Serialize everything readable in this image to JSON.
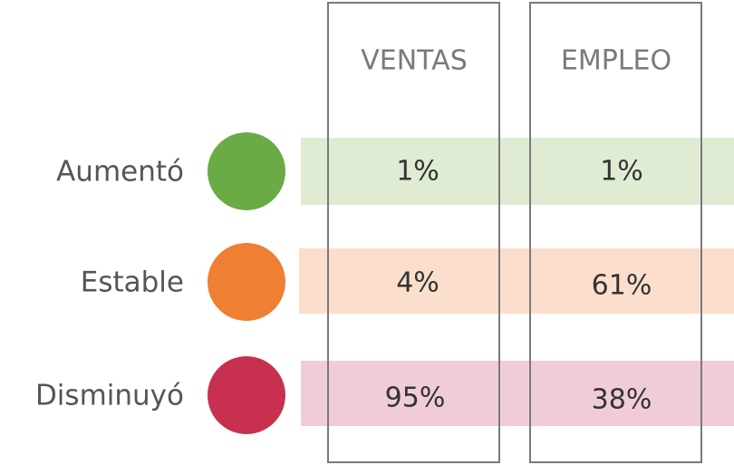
{
  "table": {
    "columns": [
      "VENTAS",
      "EMPLEO"
    ],
    "rows": [
      {
        "label": "Aumentó",
        "values": [
          "1%",
          "1%"
        ]
      },
      {
        "label": "Estable",
        "values": [
          "4%",
          "61%"
        ]
      },
      {
        "label": "Disminuyó",
        "values": [
          "95%",
          "38%"
        ]
      }
    ]
  }
}
